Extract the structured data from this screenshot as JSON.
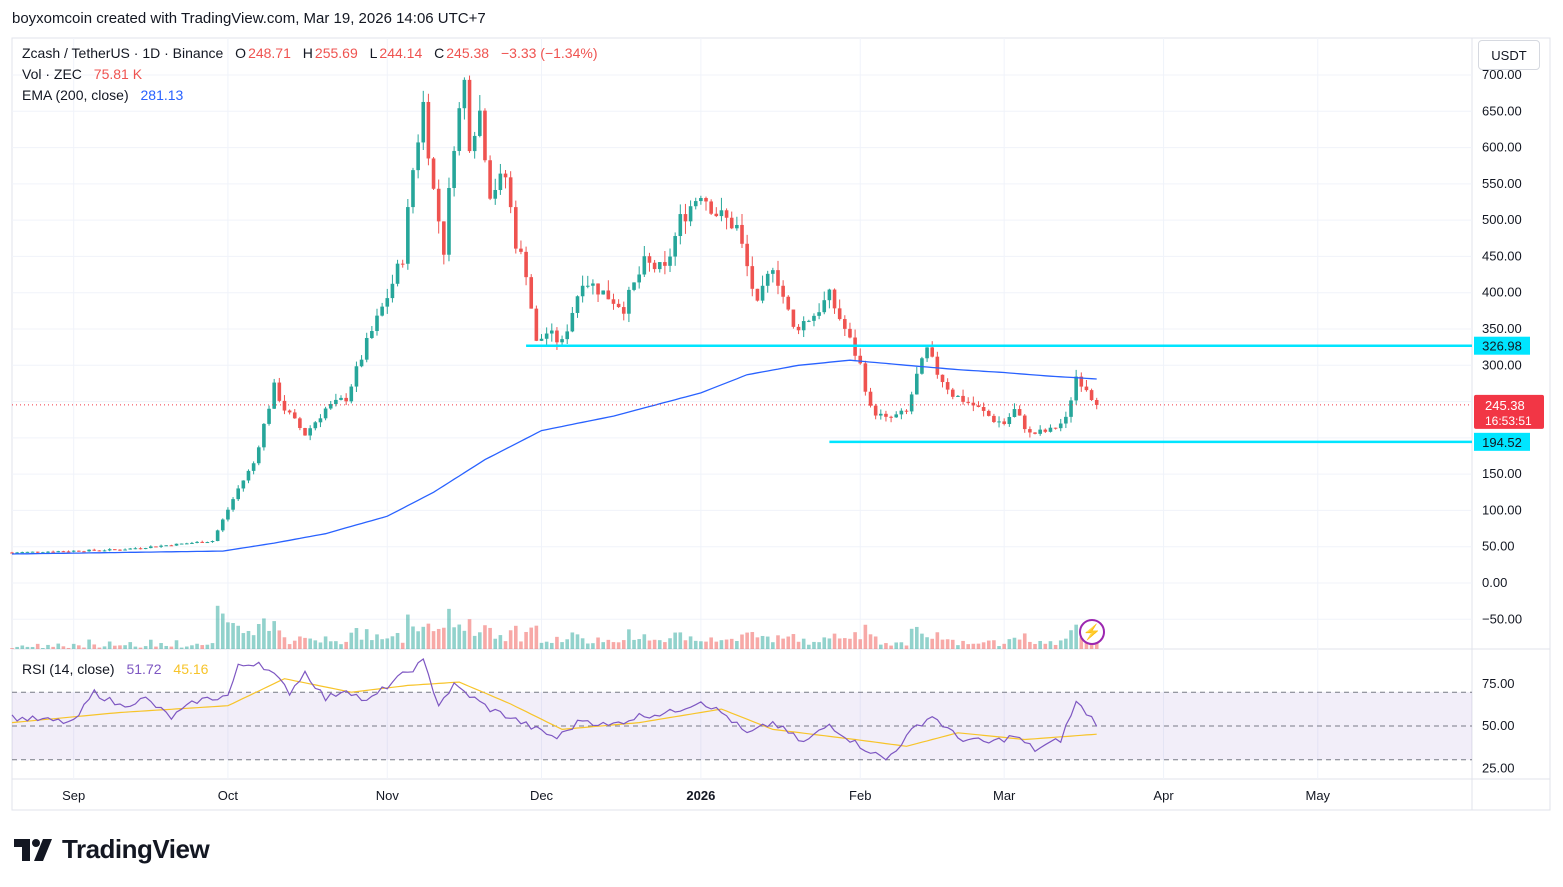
{
  "header": {
    "attribution": "boyxomcoin created with TradingView.com, Mar 19, 2026 14:06 UTC+7"
  },
  "legend": {
    "symbol": "Zcash / TetherUS · 1D · Binance",
    "o_label": "O",
    "o": "248.71",
    "h_label": "H",
    "h": "255.69",
    "l_label": "L",
    "l": "244.14",
    "c_label": "C",
    "c": "245.38",
    "change": "−3.33 (−1.34%)",
    "vol_label": "Vol · ZEC",
    "vol": "75.81 K",
    "ema_label": "EMA (200, close)",
    "ema": "281.13",
    "rsi_label": "RSI (14, close)",
    "rsi": "51.72",
    "rsi_ma": "45.16"
  },
  "currency_button": "USDT",
  "footer_logo": "TradingView",
  "colors": {
    "up": "#26a69a",
    "down": "#ef5350",
    "ema": "#2962ff",
    "rsi": "#7e57c2",
    "rsi_ma": "#f7c42a",
    "level": "#00e5ff",
    "price_badge": "#f23645"
  },
  "chart_data": {
    "type": "candlestick",
    "price_axis": {
      "ticks": [
        "700.00",
        "650.00",
        "600.00",
        "550.00",
        "500.00",
        "450.00",
        "400.00",
        "350.00",
        "300.00",
        "250.00",
        "200.00",
        "150.00",
        "100.00",
        "50.00",
        "0.00",
        "−50.00"
      ],
      "values": [
        700,
        650,
        600,
        550,
        500,
        450,
        400,
        350,
        300,
        250,
        200,
        150,
        100,
        50,
        0,
        -50
      ]
    },
    "rsi_axis": {
      "ticks": [
        "75.00",
        "50.00",
        "25.00"
      ],
      "values": [
        75,
        50,
        25
      ],
      "bands": [
        70,
        50,
        30
      ]
    },
    "time_axis": {
      "labels": [
        "Sep",
        "Oct",
        "Nov",
        "Dec",
        "2026",
        "Feb",
        "Mar",
        "Apr",
        "May"
      ],
      "dates": [
        "2025-09-01",
        "2025-10-01",
        "2025-11-01",
        "2025-12-01",
        "2026-01-01",
        "2026-02-01",
        "2026-03-01",
        "2026-04-01",
        "2026-05-01"
      ]
    },
    "range": {
      "start": "2025-08-20",
      "end": "2026-05-31",
      "last": "2026-03-19"
    },
    "levels": [
      {
        "label": "326.98",
        "value": 326.98,
        "from": "2025-11-28"
      },
      {
        "label": "194.52",
        "value": 194.52,
        "from": "2026-01-26"
      }
    ],
    "last_price": {
      "label": "245.38",
      "value": 245.38,
      "countdown": "16:53:51"
    },
    "anchors": [
      [
        "2025-08-20",
        42
      ],
      [
        "2025-09-10",
        46
      ],
      [
        "2025-09-28",
        58
      ],
      [
        "2025-10-03",
        130
      ],
      [
        "2025-10-06",
        165
      ],
      [
        "2025-10-10",
        270
      ],
      [
        "2025-10-12",
        240
      ],
      [
        "2025-10-16",
        205
      ],
      [
        "2025-10-20",
        240
      ],
      [
        "2025-10-24",
        255
      ],
      [
        "2025-10-28",
        330
      ],
      [
        "2025-11-01",
        395
      ],
      [
        "2025-11-04",
        450
      ],
      [
        "2025-11-06",
        570
      ],
      [
        "2025-11-08",
        660
      ],
      [
        "2025-11-10",
        540
      ],
      [
        "2025-11-12",
        460
      ],
      [
        "2025-11-14",
        610
      ],
      [
        "2025-11-16",
        690
      ],
      [
        "2025-11-17",
        610
      ],
      [
        "2025-11-19",
        650
      ],
      [
        "2025-11-21",
        540
      ],
      [
        "2025-11-24",
        560
      ],
      [
        "2025-11-26",
        470
      ],
      [
        "2025-11-28",
        430
      ],
      [
        "2025-11-30",
        330
      ],
      [
        "2025-12-02",
        345
      ],
      [
        "2025-12-05",
        330
      ],
      [
        "2025-12-09",
        420
      ],
      [
        "2025-12-13",
        400
      ],
      [
        "2025-12-17",
        380
      ],
      [
        "2025-12-21",
        440
      ],
      [
        "2025-12-25",
        430
      ],
      [
        "2025-12-28",
        500
      ],
      [
        "2026-01-01",
        540
      ],
      [
        "2026-01-04",
        510
      ],
      [
        "2026-01-08",
        490
      ],
      [
        "2026-01-12",
        380
      ],
      [
        "2026-01-15",
        440
      ],
      [
        "2026-01-19",
        350
      ],
      [
        "2026-01-23",
        370
      ],
      [
        "2026-01-26",
        395
      ],
      [
        "2026-01-29",
        350
      ],
      [
        "2026-02-01",
        300
      ],
      [
        "2026-02-03",
        240
      ],
      [
        "2026-02-06",
        225
      ],
      [
        "2026-02-10",
        235
      ],
      [
        "2026-02-12",
        285
      ],
      [
        "2026-02-14",
        320
      ],
      [
        "2026-02-16",
        290
      ],
      [
        "2026-02-19",
        260
      ],
      [
        "2026-02-23",
        245
      ],
      [
        "2026-02-27",
        225
      ],
      [
        "2026-03-01",
        220
      ],
      [
        "2026-03-03",
        238
      ],
      [
        "2026-03-06",
        205
      ],
      [
        "2026-03-10",
        210
      ],
      [
        "2026-03-13",
        225
      ],
      [
        "2026-03-15",
        285
      ],
      [
        "2026-03-17",
        270
      ],
      [
        "2026-03-19",
        245.38
      ]
    ],
    "ema_points": [
      [
        "2025-08-20",
        40
      ],
      [
        "2025-09-30",
        44
      ],
      [
        "2025-10-10",
        55
      ],
      [
        "2025-10-20",
        68
      ],
      [
        "2025-11-01",
        92
      ],
      [
        "2025-11-10",
        125
      ],
      [
        "2025-11-20",
        170
      ],
      [
        "2025-12-01",
        210
      ],
      [
        "2025-12-15",
        230
      ],
      [
        "2026-01-01",
        262
      ],
      [
        "2026-01-10",
        287
      ],
      [
        "2026-01-20",
        300
      ],
      [
        "2026-01-30",
        307
      ],
      [
        "2026-02-10",
        300
      ],
      [
        "2026-02-20",
        294
      ],
      [
        "2026-03-01",
        290
      ],
      [
        "2026-03-10",
        285
      ],
      [
        "2026-03-19",
        281.13
      ]
    ],
    "rsi_points": [
      [
        "2025-08-20",
        55
      ],
      [
        "2025-09-01",
        52
      ],
      [
        "2025-09-05",
        70
      ],
      [
        "2025-09-10",
        62
      ],
      [
        "2025-09-15",
        66
      ],
      [
        "2025-09-20",
        55
      ],
      [
        "2025-09-25",
        65
      ],
      [
        "2025-10-01",
        68
      ],
      [
        "2025-10-03",
        85
      ],
      [
        "2025-10-07",
        88
      ],
      [
        "2025-10-10",
        80
      ],
      [
        "2025-10-13",
        70
      ],
      [
        "2025-10-16",
        82
      ],
      [
        "2025-10-20",
        66
      ],
      [
        "2025-10-24",
        72
      ],
      [
        "2025-10-28",
        64
      ],
      [
        "2025-11-02",
        76
      ],
      [
        "2025-11-08",
        88
      ],
      [
        "2025-11-11",
        63
      ],
      [
        "2025-11-14",
        74
      ],
      [
        "2025-11-17",
        68
      ],
      [
        "2025-11-21",
        60
      ],
      [
        "2025-11-25",
        55
      ],
      [
        "2025-11-30",
        48
      ],
      [
        "2025-12-04",
        43
      ],
      [
        "2025-12-09",
        54
      ],
      [
        "2025-12-14",
        50
      ],
      [
        "2025-12-20",
        56
      ],
      [
        "2025-12-26",
        58
      ],
      [
        "2026-01-01",
        65
      ],
      [
        "2026-01-06",
        56
      ],
      [
        "2026-01-10",
        45
      ],
      [
        "2026-01-15",
        52
      ],
      [
        "2026-01-21",
        40
      ],
      [
        "2026-01-26",
        51
      ],
      [
        "2026-01-31",
        40
      ],
      [
        "2026-02-06",
        30
      ],
      [
        "2026-02-12",
        50
      ],
      [
        "2026-02-15",
        56
      ],
      [
        "2026-02-20",
        43
      ],
      [
        "2026-02-26",
        40
      ],
      [
        "2026-03-03",
        44
      ],
      [
        "2026-03-07",
        36
      ],
      [
        "2026-03-12",
        42
      ],
      [
        "2026-03-15",
        64
      ],
      [
        "2026-03-19",
        51.72
      ]
    ],
    "rsi_ma_points": [
      [
        "2025-08-20",
        52
      ],
      [
        "2025-09-10",
        58
      ],
      [
        "2025-10-01",
        62
      ],
      [
        "2025-10-12",
        78
      ],
      [
        "2025-10-25",
        70
      ],
      [
        "2025-11-05",
        74
      ],
      [
        "2025-11-15",
        76
      ],
      [
        "2025-11-25",
        63
      ],
      [
        "2025-12-05",
        48
      ],
      [
        "2025-12-20",
        52
      ],
      [
        "2026-01-05",
        60
      ],
      [
        "2026-01-15",
        48
      ],
      [
        "2026-01-31",
        42
      ],
      [
        "2026-02-10",
        38
      ],
      [
        "2026-02-20",
        46
      ],
      [
        "2026-03-05",
        42
      ],
      [
        "2026-03-19",
        45.16
      ]
    ]
  }
}
